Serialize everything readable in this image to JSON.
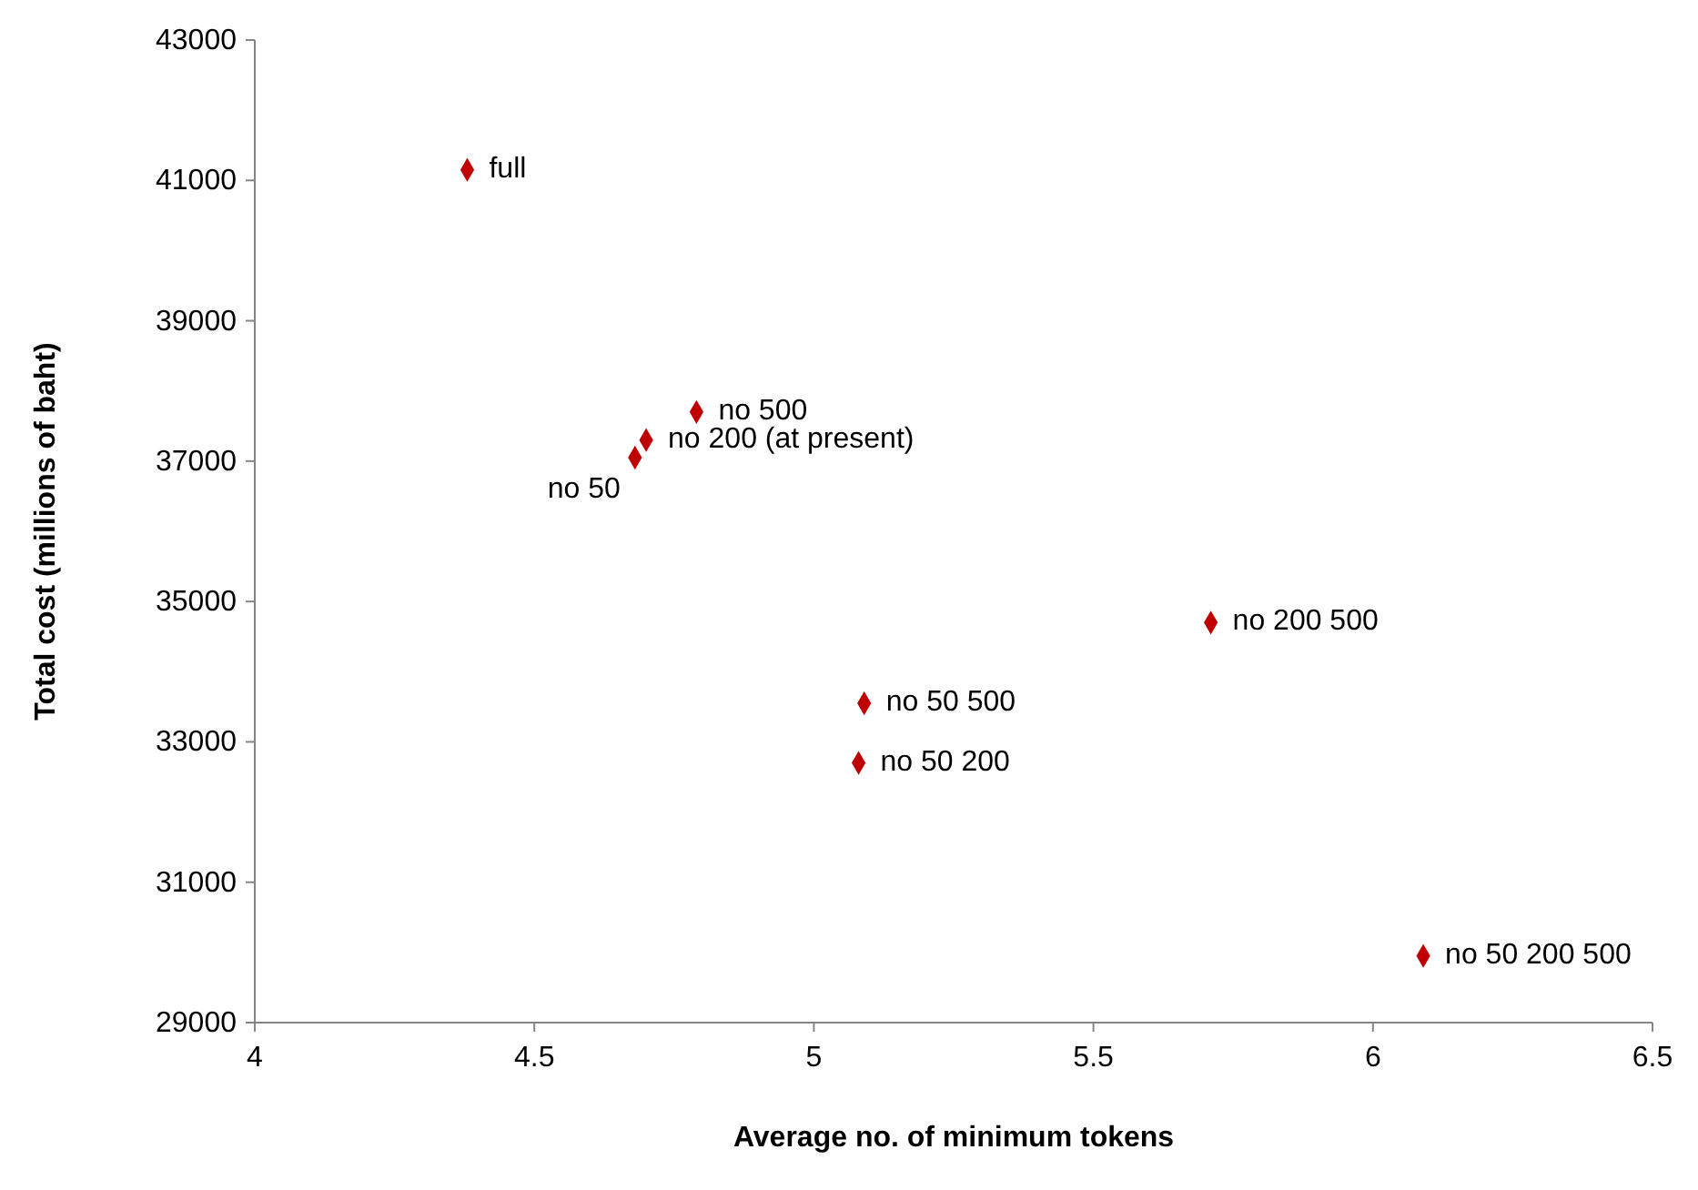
{
  "chart_data": {
    "type": "scatter",
    "xlabel": "Average no. of minimum tokens",
    "ylabel": "Total cost (millions of baht)",
    "x": [
      4.38,
      4.79,
      4.7,
      4.68,
      5.71,
      5.09,
      5.08,
      6.09
    ],
    "series": [
      {
        "color": "#c00000",
        "values": [
          41150,
          37700,
          37300,
          37050,
          34700,
          33550,
          32700,
          29950
        ]
      }
    ],
    "marker": "diamond",
    "grid": false,
    "xlim": [
      4,
      6.5
    ],
    "xticks": [
      4,
      4.5,
      5,
      5.5,
      6,
      6.5
    ],
    "ylim": [
      29000,
      43000
    ],
    "yticks": [
      29000,
      31000,
      33000,
      35000,
      37000,
      39000,
      41000,
      43000
    ],
    "annotations": [
      {
        "text": "full",
        "x": 4.38,
        "y": 41150
      },
      {
        "text": "no 500",
        "x": 4.79,
        "y": 37700
      },
      {
        "text": "no 200 (at present)",
        "x": 4.7,
        "y": 37300
      },
      {
        "text": "no 50",
        "x": 4.68,
        "y": 37050
      },
      {
        "text": "no 200 500",
        "x": 5.71,
        "y": 34700
      },
      {
        "text": "no 50 500",
        "x": 5.09,
        "y": 33550
      },
      {
        "text": "no 50 200",
        "x": 5.08,
        "y": 32700
      },
      {
        "text": "no 50 200 500",
        "x": 6.09,
        "y": 29950
      }
    ]
  }
}
